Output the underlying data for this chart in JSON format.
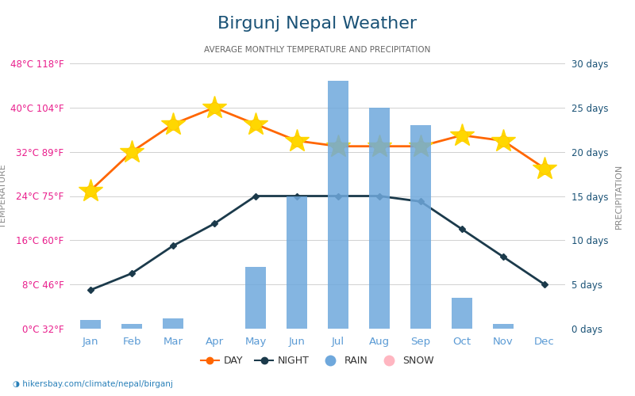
{
  "title": "Birgunj Nepal Weather",
  "subtitle": "AVERAGE MONTHLY TEMPERATURE AND PRECIPITATION",
  "months": [
    "Jan",
    "Feb",
    "Mar",
    "Apr",
    "May",
    "Jun",
    "Jul",
    "Aug",
    "Sep",
    "Oct",
    "Nov",
    "Dec"
  ],
  "day_temps": [
    25,
    32,
    37,
    40,
    37,
    34,
    33,
    33,
    33,
    35,
    34,
    29
  ],
  "night_temps": [
    7,
    10,
    15,
    19,
    24,
    24,
    24,
    24,
    23,
    18,
    13,
    8
  ],
  "rain_days": [
    1.0,
    0.5,
    1.2,
    0.0,
    7.0,
    15.0,
    28.0,
    25.0,
    23.0,
    3.5,
    0.5,
    0.0
  ],
  "temp_ticks": [
    0,
    8,
    16,
    24,
    32,
    40,
    48
  ],
  "temp_labels": [
    "0°C 32°F",
    "8°C 46°F",
    "16°C 60°F",
    "24°C 75°F",
    "32°C 89°F",
    "40°C 104°F",
    "48°C 118°F"
  ],
  "precip_ticks": [
    0,
    5,
    10,
    15,
    20,
    25,
    30
  ],
  "precip_labels": [
    "0 days",
    "5 days",
    "10 days",
    "15 days",
    "20 days",
    "25 days",
    "30 days"
  ],
  "day_color": "#FF6600",
  "night_color": "#1B3A4B",
  "bar_color": "#6FA8DC",
  "bar_alpha": 0.85,
  "bg_color": "#ffffff",
  "grid_color": "#d0d0d0",
  "title_color": "#1a5276",
  "subtitle_color": "#666666",
  "left_label_color": "#e91e8c",
  "right_label_color": "#1a5276",
  "month_label_color": "#5b9bd5",
  "ylabel_left": "TEMPERATURE",
  "ylabel_right": "PRECIPITATION",
  "footer": "hikersbay.com/climate/nepal/birganj",
  "legend_day": "DAY",
  "legend_night": "NIGHT",
  "legend_rain": "RAIN",
  "legend_snow": "SNOW",
  "snow_color": "#FFB6C1",
  "figwidth": 8.0,
  "figheight": 5.0,
  "dpi": 100
}
